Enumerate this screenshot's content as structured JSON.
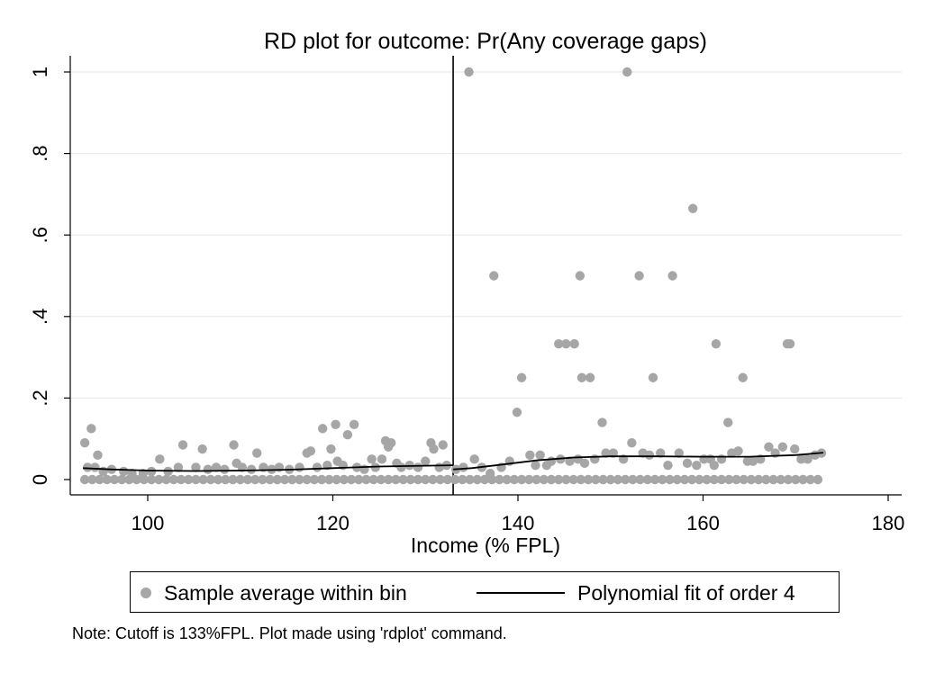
{
  "chart_data": {
    "type": "scatter",
    "title": "RD plot for outcome: Pr(Any coverage gaps)",
    "xlabel": "Income (% FPL)",
    "ylabel": "",
    "xlim": [
      92,
      182
    ],
    "ylim": [
      0,
      1.05
    ],
    "x_ticks": [
      100,
      120,
      140,
      160,
      180
    ],
    "x_tick_labels": [
      "100",
      "120",
      "140",
      "160",
      "180"
    ],
    "y_ticks": [
      0,
      0.2,
      0.4,
      0.6,
      0.8,
      1
    ],
    "y_tick_labels": [
      "0",
      ".2",
      ".4",
      ".6",
      ".8",
      "1"
    ],
    "grid": "horizontal",
    "cutoff": 133,
    "legend_position": "bottom",
    "series": [
      {
        "name": "Sample average within bin",
        "kind": "scatter",
        "color": "#a6a6a6",
        "points": [
          [
            93.2,
            0.09
          ],
          [
            93.5,
            0.03
          ],
          [
            93.9,
            0.125
          ],
          [
            94.6,
            0.06
          ],
          [
            94.3,
            0.03
          ],
          [
            95.2,
            0.02
          ],
          [
            96.1,
            0.025
          ],
          [
            97.4,
            0.02
          ],
          [
            98.3,
            0.015
          ],
          [
            99.5,
            0.015
          ],
          [
            100.4,
            0.02
          ],
          [
            101.3,
            0.05
          ],
          [
            102.2,
            0.02
          ],
          [
            103.3,
            0.03
          ],
          [
            103.8,
            0.085
          ],
          [
            105.2,
            0.03
          ],
          [
            105.9,
            0.075
          ],
          [
            106.5,
            0.025
          ],
          [
            107.4,
            0.03
          ],
          [
            108.3,
            0.025
          ],
          [
            109.3,
            0.085
          ],
          [
            109.6,
            0.04
          ],
          [
            110.2,
            0.03
          ],
          [
            111.2,
            0.025
          ],
          [
            111.8,
            0.065
          ],
          [
            112.5,
            0.03
          ],
          [
            113.4,
            0.025
          ],
          [
            114.2,
            0.03
          ],
          [
            115.3,
            0.025
          ],
          [
            116.4,
            0.03
          ],
          [
            117.2,
            0.065
          ],
          [
            117.6,
            0.07
          ],
          [
            118.3,
            0.03
          ],
          [
            118.9,
            0.125
          ],
          [
            119.4,
            0.035
          ],
          [
            119.8,
            0.075
          ],
          [
            120.3,
            0.135
          ],
          [
            120.5,
            0.045
          ],
          [
            121.1,
            0.035
          ],
          [
            121.6,
            0.11
          ],
          [
            122.3,
            0.135
          ],
          [
            122.6,
            0.03
          ],
          [
            123.4,
            0.025
          ],
          [
            124.2,
            0.05
          ],
          [
            124.6,
            0.03
          ],
          [
            125.3,
            0.05
          ],
          [
            125.7,
            0.095
          ],
          [
            126.0,
            0.08
          ],
          [
            126.3,
            0.09
          ],
          [
            126.9,
            0.04
          ],
          [
            127.4,
            0.03
          ],
          [
            128.3,
            0.035
          ],
          [
            129.2,
            0.03
          ],
          [
            130.0,
            0.045
          ],
          [
            130.6,
            0.09
          ],
          [
            130.9,
            0.075
          ],
          [
            131.5,
            0.03
          ],
          [
            131.9,
            0.085
          ],
          [
            132.3,
            0.035
          ],
          [
            133.3,
            0.025
          ],
          [
            134.1,
            0.03
          ],
          [
            134.7,
            1.0
          ],
          [
            135.3,
            0.05
          ],
          [
            136.1,
            0.03
          ],
          [
            137.0,
            0.015
          ],
          [
            137.4,
            0.5
          ],
          [
            138.2,
            0.03
          ],
          [
            139.1,
            0.045
          ],
          [
            139.9,
            0.165
          ],
          [
            140.4,
            0.25
          ],
          [
            141.3,
            0.06
          ],
          [
            141.9,
            0.035
          ],
          [
            142.4,
            0.06
          ],
          [
            143.1,
            0.035
          ],
          [
            143.6,
            0.045
          ],
          [
            144.4,
            0.333
          ],
          [
            144.6,
            0.05
          ],
          [
            145.2,
            0.333
          ],
          [
            145.6,
            0.045
          ],
          [
            146.1,
            0.333
          ],
          [
            146.5,
            0.05
          ],
          [
            146.7,
            0.5
          ],
          [
            146.9,
            0.25
          ],
          [
            147.2,
            0.04
          ],
          [
            147.8,
            0.25
          ],
          [
            148.3,
            0.05
          ],
          [
            149.1,
            0.14
          ],
          [
            149.5,
            0.065
          ],
          [
            150.3,
            0.065
          ],
          [
            151.4,
            0.05
          ],
          [
            151.8,
            1.0
          ],
          [
            152.3,
            0.09
          ],
          [
            153.1,
            0.5
          ],
          [
            153.5,
            0.065
          ],
          [
            154.2,
            0.06
          ],
          [
            154.6,
            0.25
          ],
          [
            155.4,
            0.065
          ],
          [
            156.2,
            0.035
          ],
          [
            156.7,
            0.5
          ],
          [
            157.4,
            0.065
          ],
          [
            158.3,
            0.04
          ],
          [
            158.9,
            0.665
          ],
          [
            159.3,
            0.035
          ],
          [
            160.1,
            0.05
          ],
          [
            160.8,
            0.05
          ],
          [
            161.2,
            0.035
          ],
          [
            161.4,
            0.333
          ],
          [
            162.0,
            0.05
          ],
          [
            162.7,
            0.14
          ],
          [
            163.1,
            0.065
          ],
          [
            163.8,
            0.07
          ],
          [
            164.3,
            0.25
          ],
          [
            164.8,
            0.045
          ],
          [
            165.4,
            0.045
          ],
          [
            166.2,
            0.05
          ],
          [
            167.1,
            0.08
          ],
          [
            167.8,
            0.065
          ],
          [
            168.6,
            0.08
          ],
          [
            169.1,
            0.333
          ],
          [
            169.4,
            0.333
          ],
          [
            169.9,
            0.075
          ],
          [
            170.6,
            0.05
          ],
          [
            171.3,
            0.05
          ],
          [
            172.1,
            0.06
          ],
          [
            172.8,
            0.065
          ]
        ]
      },
      {
        "name": "Polynomial fit of order 4",
        "kind": "line",
        "color": "#000000",
        "segments": [
          [
            [
              93,
              0.028
            ],
            [
              96,
              0.025
            ],
            [
              100,
              0.022
            ],
            [
              105,
              0.021
            ],
            [
              110,
              0.022
            ],
            [
              115,
              0.024
            ],
            [
              120,
              0.028
            ],
            [
              125,
              0.032
            ],
            [
              130,
              0.034
            ],
            [
              133,
              0.035
            ]
          ],
          [
            [
              133,
              0.025
            ],
            [
              135,
              0.028
            ],
            [
              138,
              0.036
            ],
            [
              142,
              0.047
            ],
            [
              146,
              0.054
            ],
            [
              150,
              0.057
            ],
            [
              155,
              0.057
            ],
            [
              160,
              0.056
            ],
            [
              165,
              0.056
            ],
            [
              170,
              0.06
            ],
            [
              173,
              0.066
            ]
          ]
        ]
      }
    ],
    "zero_row": {
      "description_free": true,
      "x_start": 93.2,
      "x_end": 173,
      "step": 0.8,
      "y": 0
    }
  },
  "note": "Note: Cutoff is 133%FPL. Plot made using 'rdplot' command."
}
